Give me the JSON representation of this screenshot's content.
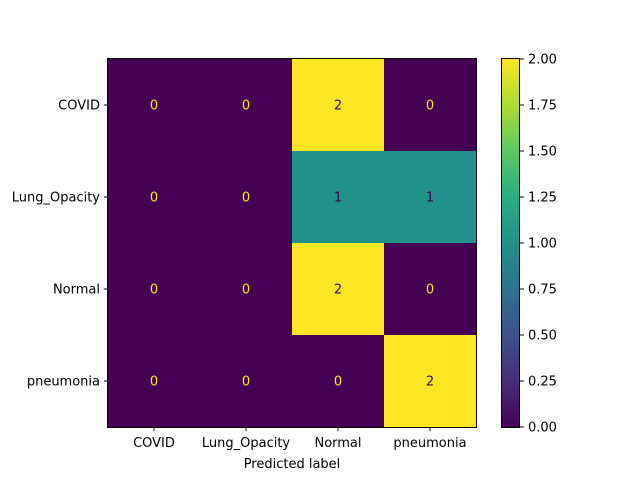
{
  "chart_data": {
    "type": "heatmap",
    "title": "",
    "xlabel": "Predicted label",
    "ylabel": "",
    "x_categories": [
      "COVID",
      "Lung_Opacity",
      "Normal",
      "pneumonia"
    ],
    "y_categories": [
      "COVID",
      "Lung_Opacity",
      "Normal",
      "pneumonia"
    ],
    "values": [
      [
        0,
        0,
        2,
        0
      ],
      [
        0,
        0,
        1,
        1
      ],
      [
        0,
        0,
        2,
        0
      ],
      [
        0,
        0,
        0,
        2
      ]
    ],
    "colormap": "viridis",
    "colors": {
      "low": "#440154",
      "mid": "#21918c",
      "high": "#fde725"
    },
    "colorbar": {
      "range": [
        0.0,
        2.0
      ],
      "ticks": [
        "0.00",
        "0.25",
        "0.50",
        "0.75",
        "1.00",
        "1.25",
        "1.50",
        "1.75",
        "2.00"
      ]
    },
    "annotation_colors": {
      "on_dark": "#fde725",
      "on_light": "#440154"
    }
  }
}
